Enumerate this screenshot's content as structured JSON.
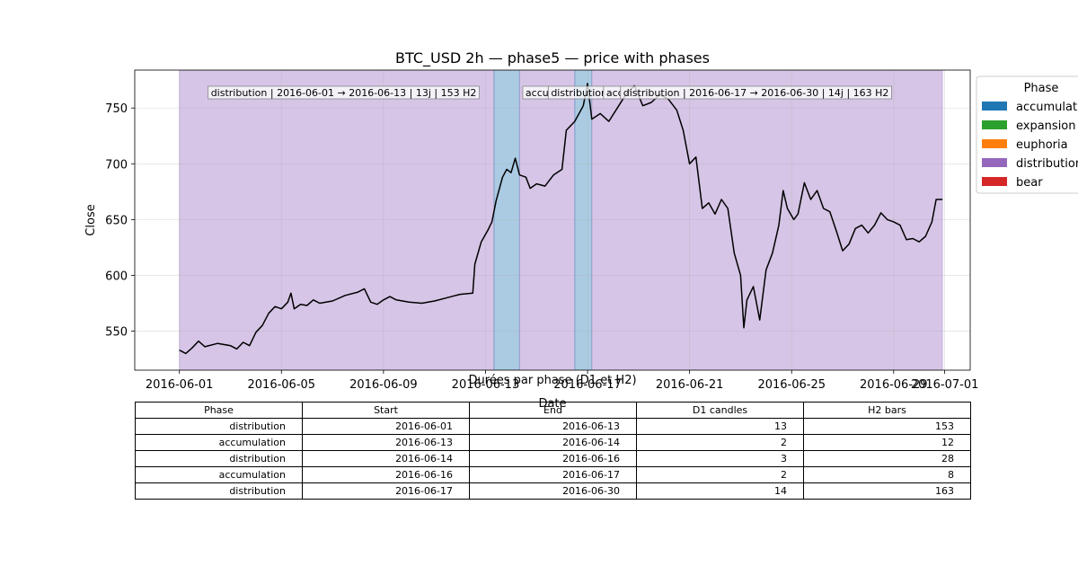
{
  "chart_data": {
    "type": "line",
    "title": "BTC_USD 2h — phase5 — price with phases",
    "xlabel": "Date",
    "ylabel": "Close",
    "xlim": [
      "2016-05-30T06:00",
      "2016-07-02T00:00"
    ],
    "ylim": [
      515,
      784
    ],
    "x_ticks": [
      "2016-06-01",
      "2016-06-05",
      "2016-06-09",
      "2016-06-13",
      "2016-06-17",
      "2016-06-21",
      "2016-06-25",
      "2016-06-29",
      "2016-07-01"
    ],
    "y_ticks": [
      550,
      600,
      650,
      700,
      750
    ],
    "grid": true,
    "line_color": "#000000",
    "legend": {
      "title": "Phase",
      "placement": "right, outside plot (clipped)",
      "entries": [
        {
          "label": "accumulation",
          "color": "#1f77b4"
        },
        {
          "label": "expansion",
          "color": "#2ca02c"
        },
        {
          "label": "euphoria",
          "color": "#ff7f0e"
        },
        {
          "label": "distribution",
          "color": "#9467bd"
        },
        {
          "label": "bear",
          "color": "#d62728"
        }
      ]
    },
    "phase_bands": [
      {
        "phase": "distribution",
        "start": "2016-06-01T00:00",
        "end": "2016-06-13T08:00",
        "color": "#9467bd",
        "label": "distribution | 2016-06-01 → 2016-06-13 | 13j | 153 H2"
      },
      {
        "phase": "accumulation",
        "start": "2016-06-13T08:00",
        "end": "2016-06-14T08:00",
        "color": "#1f77b4",
        "label": "accumulation | 2016-06-13 → 2016-06-14 | 2j | 12 H2"
      },
      {
        "phase": "distribution",
        "start": "2016-06-14T08:00",
        "end": "2016-06-16T12:00",
        "color": "#9467bd",
        "label": "distribution | 2016-06-14 → 2016-06-16 | 3j | 28 H2"
      },
      {
        "phase": "accumulation",
        "start": "2016-06-16T12:00",
        "end": "2016-06-17T04:00",
        "color": "#1f77b4",
        "label": "accumulation | 2016-06-16 → 2016-06-17 | 2j | 8 H2"
      },
      {
        "phase": "distribution",
        "start": "2016-06-17T04:00",
        "end": "2016-06-30T22:00",
        "color": "#9467bd",
        "label": "distribution | 2016-06-17 → 2016-06-30 | 14j | 163 H2"
      }
    ],
    "series": [
      {
        "points": [
          [
            "2016-06-01T00:00",
            533
          ],
          [
            "2016-06-01T06:00",
            530
          ],
          [
            "2016-06-01T12:00",
            535
          ],
          [
            "2016-06-01T18:00",
            541
          ],
          [
            "2016-06-02T00:00",
            536
          ],
          [
            "2016-06-02T12:00",
            539
          ],
          [
            "2016-06-03T00:00",
            537
          ],
          [
            "2016-06-03T06:00",
            534
          ],
          [
            "2016-06-03T12:00",
            540
          ],
          [
            "2016-06-03T18:00",
            537
          ],
          [
            "2016-06-04T00:00",
            549
          ],
          [
            "2016-06-04T06:00",
            555
          ],
          [
            "2016-06-04T12:00",
            566
          ],
          [
            "2016-06-04T18:00",
            572
          ],
          [
            "2016-06-05T00:00",
            570
          ],
          [
            "2016-06-05T06:00",
            576
          ],
          [
            "2016-06-05T09:00",
            584
          ],
          [
            "2016-06-05T12:00",
            570
          ],
          [
            "2016-06-05T18:00",
            574
          ],
          [
            "2016-06-06T00:00",
            573
          ],
          [
            "2016-06-06T06:00",
            578
          ],
          [
            "2016-06-06T12:00",
            575
          ],
          [
            "2016-06-07T00:00",
            577
          ],
          [
            "2016-06-07T12:00",
            582
          ],
          [
            "2016-06-08T00:00",
            585
          ],
          [
            "2016-06-08T06:00",
            588
          ],
          [
            "2016-06-08T12:00",
            576
          ],
          [
            "2016-06-08T18:00",
            574
          ],
          [
            "2016-06-09T00:00",
            578
          ],
          [
            "2016-06-09T06:00",
            581
          ],
          [
            "2016-06-09T12:00",
            578
          ],
          [
            "2016-06-10T00:00",
            576
          ],
          [
            "2016-06-10T12:00",
            575
          ],
          [
            "2016-06-11T00:00",
            577
          ],
          [
            "2016-06-11T12:00",
            580
          ],
          [
            "2016-06-12T00:00",
            583
          ],
          [
            "2016-06-12T12:00",
            584
          ],
          [
            "2016-06-12T14:00",
            610
          ],
          [
            "2016-06-12T20:00",
            630
          ],
          [
            "2016-06-13T02:00",
            640
          ],
          [
            "2016-06-13T06:00",
            648
          ],
          [
            "2016-06-13T10:00",
            667
          ],
          [
            "2016-06-13T16:00",
            688
          ],
          [
            "2016-06-13T20:00",
            695
          ],
          [
            "2016-06-14T00:00",
            692
          ],
          [
            "2016-06-14T04:00",
            705
          ],
          [
            "2016-06-14T08:00",
            690
          ],
          [
            "2016-06-14T14:00",
            688
          ],
          [
            "2016-06-14T18:00",
            678
          ],
          [
            "2016-06-15T00:00",
            682
          ],
          [
            "2016-06-15T08:00",
            680
          ],
          [
            "2016-06-15T16:00",
            690
          ],
          [
            "2016-06-16T00:00",
            695
          ],
          [
            "2016-06-16T04:00",
            730
          ],
          [
            "2016-06-16T12:00",
            738
          ],
          [
            "2016-06-16T20:00",
            752
          ],
          [
            "2016-06-17T00:00",
            772
          ],
          [
            "2016-06-17T04:00",
            740
          ],
          [
            "2016-06-17T12:00",
            745
          ],
          [
            "2016-06-17T20:00",
            738
          ],
          [
            "2016-06-18T04:00",
            750
          ],
          [
            "2016-06-18T12:00",
            762
          ],
          [
            "2016-06-18T20:00",
            770
          ],
          [
            "2016-06-19T04:00",
            752
          ],
          [
            "2016-06-19T12:00",
            755
          ],
          [
            "2016-06-19T20:00",
            762
          ],
          [
            "2016-06-20T04:00",
            758
          ],
          [
            "2016-06-20T12:00",
            748
          ],
          [
            "2016-06-20T18:00",
            730
          ],
          [
            "2016-06-21T00:00",
            700
          ],
          [
            "2016-06-21T06:00",
            706
          ],
          [
            "2016-06-21T12:00",
            660
          ],
          [
            "2016-06-21T18:00",
            665
          ],
          [
            "2016-06-22T00:00",
            655
          ],
          [
            "2016-06-22T06:00",
            668
          ],
          [
            "2016-06-22T12:00",
            660
          ],
          [
            "2016-06-22T18:00",
            620
          ],
          [
            "2016-06-23T00:00",
            600
          ],
          [
            "2016-06-23T03:00",
            553
          ],
          [
            "2016-06-23T06:00",
            578
          ],
          [
            "2016-06-23T12:00",
            590
          ],
          [
            "2016-06-23T18:00",
            560
          ],
          [
            "2016-06-24T00:00",
            605
          ],
          [
            "2016-06-24T06:00",
            620
          ],
          [
            "2016-06-24T12:00",
            645
          ],
          [
            "2016-06-24T16:00",
            676
          ],
          [
            "2016-06-24T20:00",
            660
          ],
          [
            "2016-06-25T02:00",
            650
          ],
          [
            "2016-06-25T06:00",
            655
          ],
          [
            "2016-06-25T12:00",
            683
          ],
          [
            "2016-06-25T18:00",
            668
          ],
          [
            "2016-06-26T00:00",
            676
          ],
          [
            "2016-06-26T06:00",
            660
          ],
          [
            "2016-06-26T12:00",
            657
          ],
          [
            "2016-06-26T18:00",
            640
          ],
          [
            "2016-06-27T00:00",
            622
          ],
          [
            "2016-06-27T06:00",
            628
          ],
          [
            "2016-06-27T12:00",
            642
          ],
          [
            "2016-06-27T18:00",
            645
          ],
          [
            "2016-06-28T00:00",
            638
          ],
          [
            "2016-06-28T06:00",
            645
          ],
          [
            "2016-06-28T12:00",
            656
          ],
          [
            "2016-06-28T18:00",
            650
          ],
          [
            "2016-06-29T00:00",
            648
          ],
          [
            "2016-06-29T06:00",
            645
          ],
          [
            "2016-06-29T12:00",
            632
          ],
          [
            "2016-06-29T18:00",
            633
          ],
          [
            "2016-06-30T00:00",
            630
          ],
          [
            "2016-06-30T06:00",
            635
          ],
          [
            "2016-06-30T12:00",
            648
          ],
          [
            "2016-06-30T16:00",
            668
          ],
          [
            "2016-06-30T22:00",
            668
          ]
        ]
      }
    ]
  },
  "table": {
    "title": "Durées par phase (D1 et H2)",
    "columns": [
      "Phase",
      "Start",
      "End",
      "D1 candles",
      "H2 bars"
    ],
    "rows": [
      [
        "distribution",
        "2016-06-01",
        "2016-06-13",
        "13",
        "153"
      ],
      [
        "accumulation",
        "2016-06-13",
        "2016-06-14",
        "2",
        "12"
      ],
      [
        "distribution",
        "2016-06-14",
        "2016-06-16",
        "3",
        "28"
      ],
      [
        "accumulation",
        "2016-06-16",
        "2016-06-17",
        "2",
        "8"
      ],
      [
        "distribution",
        "2016-06-17",
        "2016-06-30",
        "14",
        "163"
      ]
    ]
  }
}
